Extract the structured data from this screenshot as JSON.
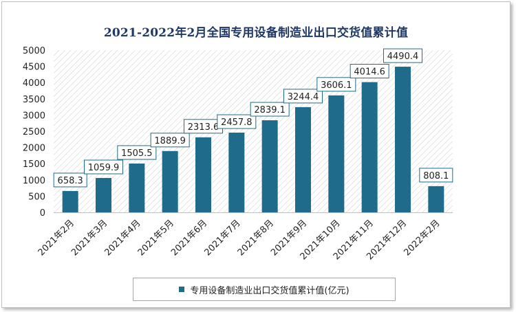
{
  "colors": {
    "bar": "#1f6b8c",
    "title": "#1f3864",
    "label_border": "#1f6b8c"
  },
  "chart_data": {
    "type": "bar",
    "title": "2021-2022年2月全国专用设备制造业出口交货值累计值",
    "categories": [
      "2021年2月",
      "2021年3月",
      "2021年4月",
      "2021年5月",
      "2021年6月",
      "2021年7月",
      "2021年8月",
      "2021年9月",
      "2021年10月",
      "2021年11月",
      "2021年12月",
      "2022年2月"
    ],
    "series": [
      {
        "name": "专用设备制造业出口交货值累计值(亿元)",
        "values": [
          658.3,
          1059.9,
          1505.5,
          1889.9,
          2313.6,
          2457.8,
          2839.1,
          3244.4,
          3606.1,
          4014.6,
          4490.4,
          808.1
        ],
        "labels": [
          "658.3",
          "1059.9",
          "1505.5",
          "1889.9",
          "2313.6",
          "2457.8",
          "2839.1",
          "3244.4",
          "3606.1",
          "4014.6",
          "4490.4",
          "808.1"
        ]
      }
    ],
    "ylim": [
      0,
      5000
    ],
    "yticks": [
      "0",
      "500",
      "1000",
      "1500",
      "2000",
      "2500",
      "3000",
      "3500",
      "4000",
      "4500",
      "5000"
    ],
    "xlabel": "",
    "ylabel": "",
    "grid": false,
    "legend_position": "bottom"
  }
}
